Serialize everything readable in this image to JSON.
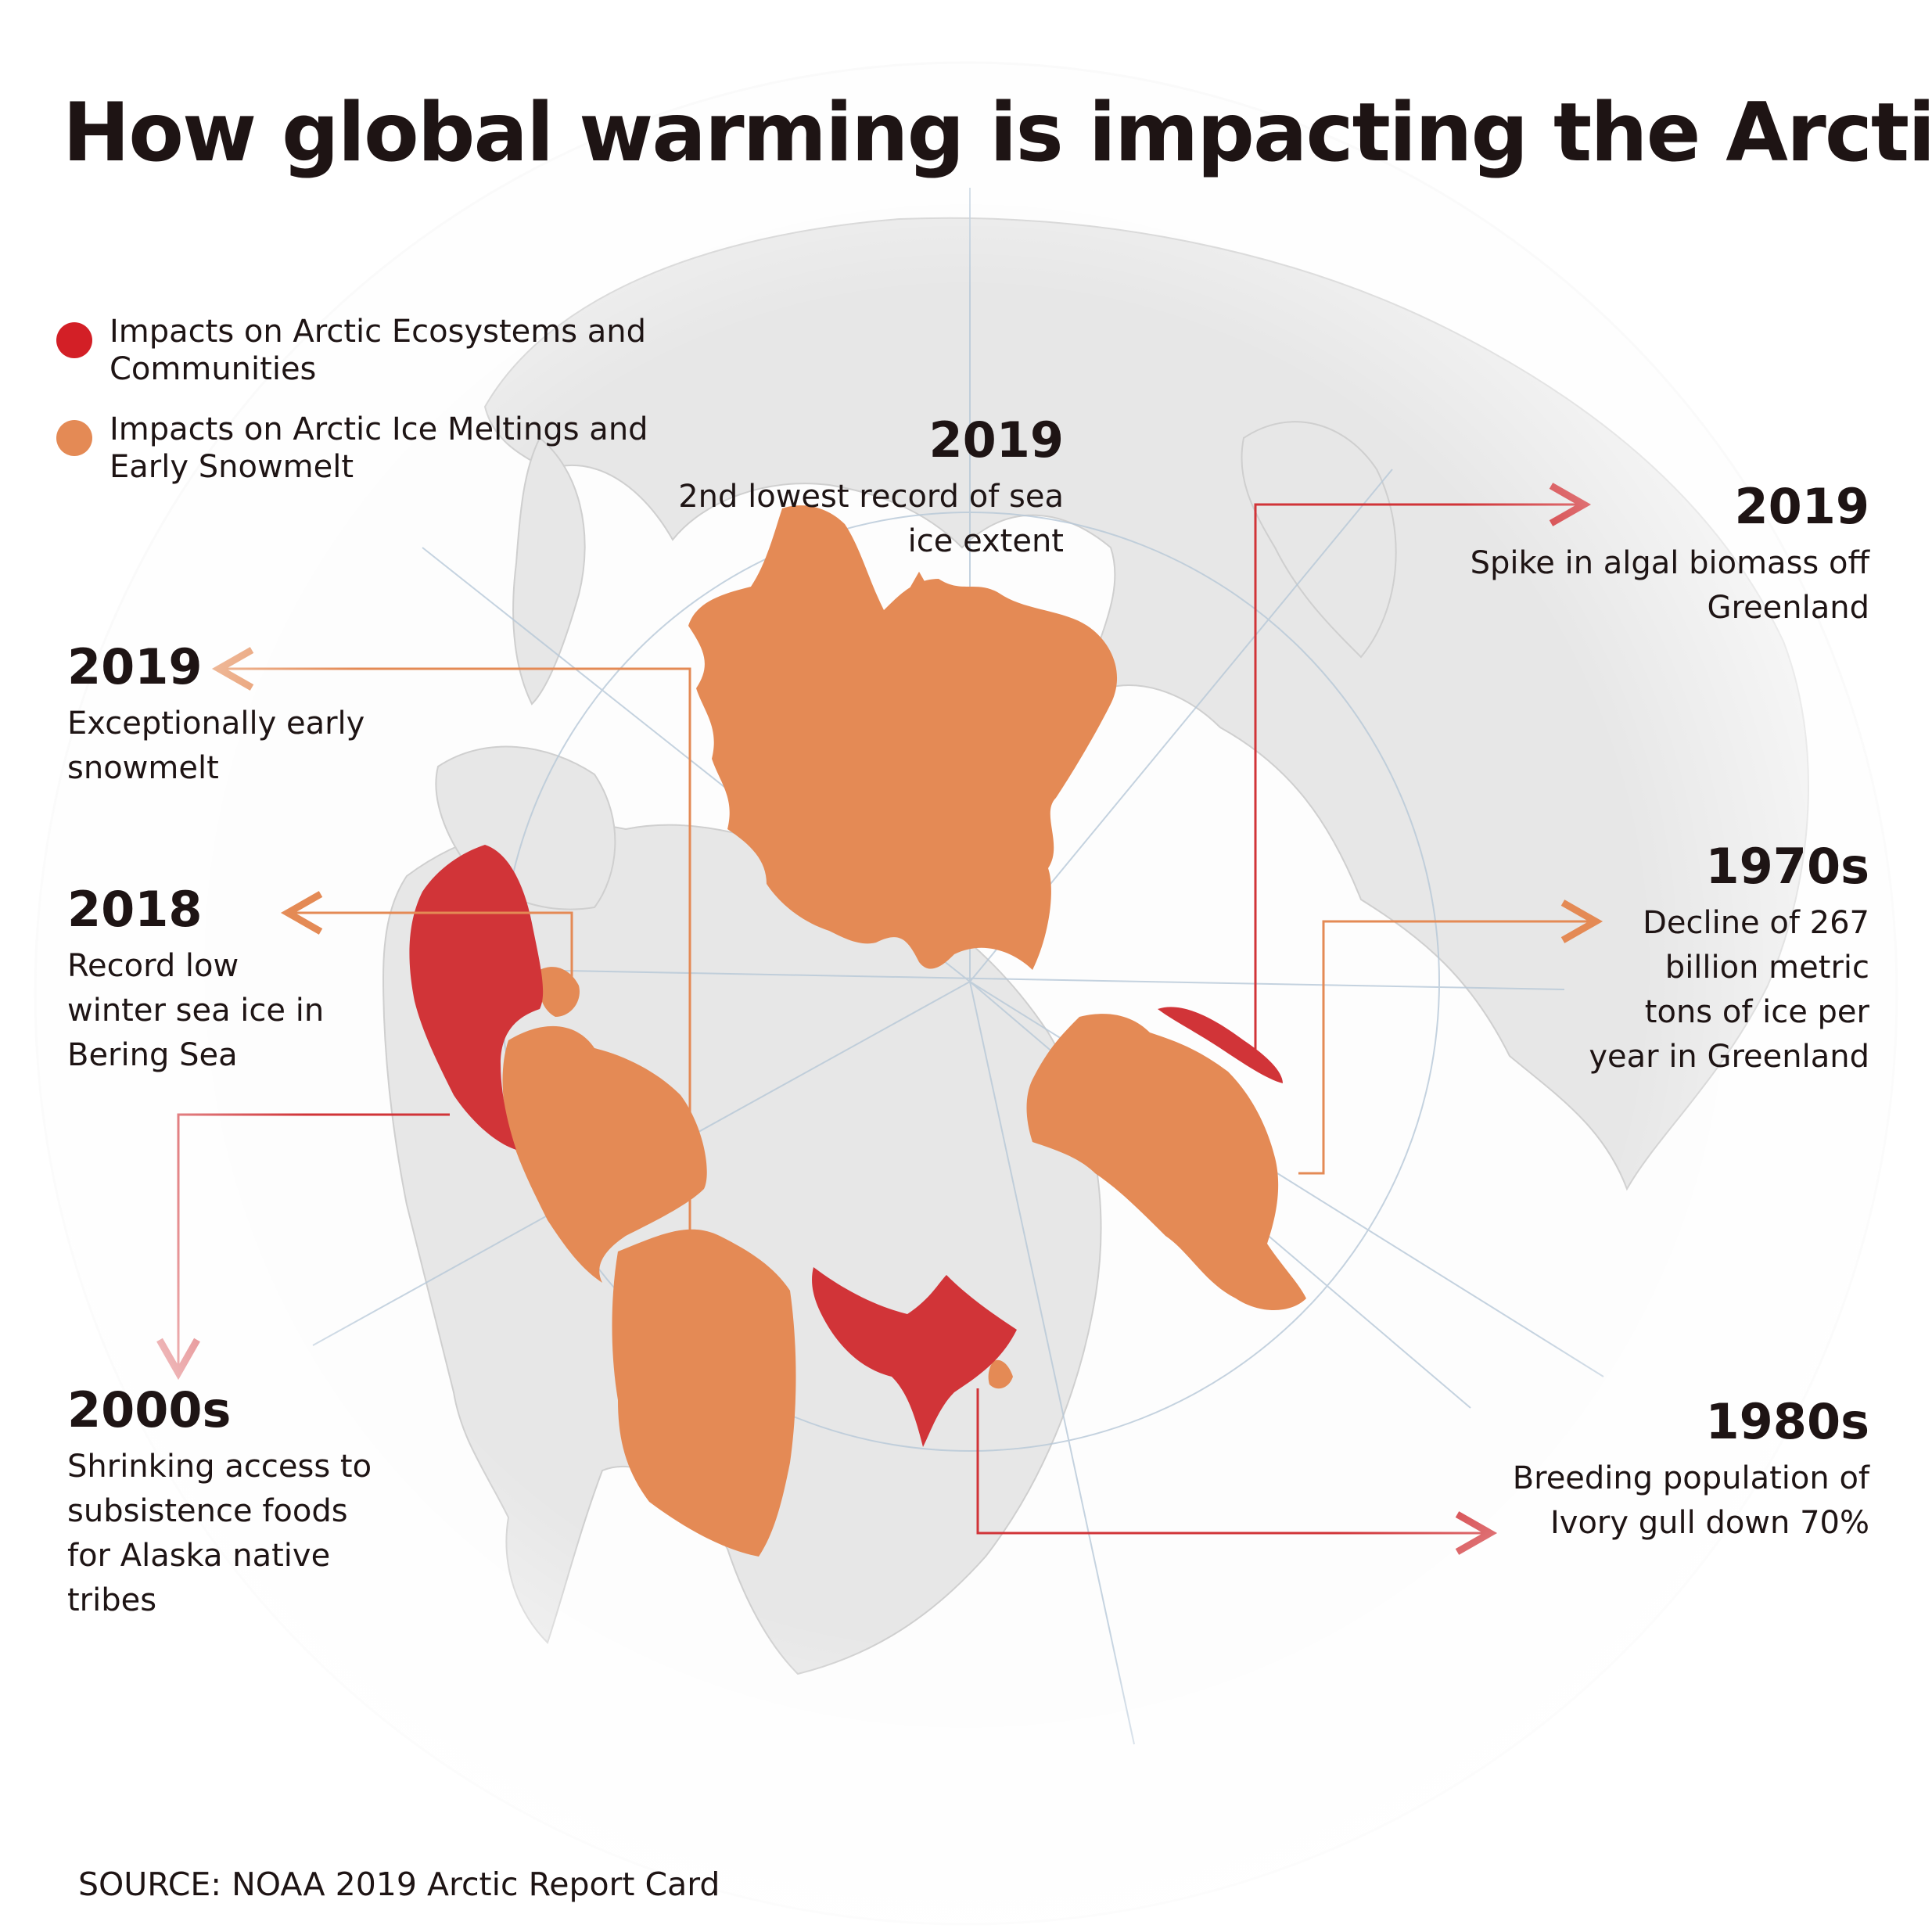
{
  "title": "How global warming is impacting the Arctic",
  "colors": {
    "ecosystems_red": "#d13438",
    "ice_orange": "#e48a55",
    "land_gray": "#e8e8e8",
    "text": "#1e1414"
  },
  "legend": [
    {
      "label": "Impacts on Arctic Ecosystems and Communities",
      "color": "#d31f26"
    },
    {
      "label": "Impacts on Arctic Ice Meltings and Early Snowmelt",
      "color": "#e48a55"
    }
  ],
  "annotations": [
    {
      "year": "2019",
      "text": "2nd lowest record of sea ice extent",
      "category": "ice"
    },
    {
      "year": "2019",
      "text": "Spike in algal biomass off Greenland",
      "category": "ecosystems"
    },
    {
      "year": "2019",
      "text": "Exceptionally early snowmelt",
      "category": "ice"
    },
    {
      "year": "2018",
      "text": "Record low winter sea ice in Bering Sea",
      "category": "ice"
    },
    {
      "year": "1970s",
      "text": "Decline of 267 billion metric tons of ice per year in Greenland",
      "category": "ice"
    },
    {
      "year": "2000s",
      "text": "Shrinking access to subsistence foods for Alaska native tribes",
      "category": "ecosystems"
    },
    {
      "year": "1980s",
      "text": "Breeding population of Ivory gull down 70%",
      "category": "ecosystems"
    }
  ],
  "source": "SOURCE: NOAA 2019 Arctic Report Card"
}
